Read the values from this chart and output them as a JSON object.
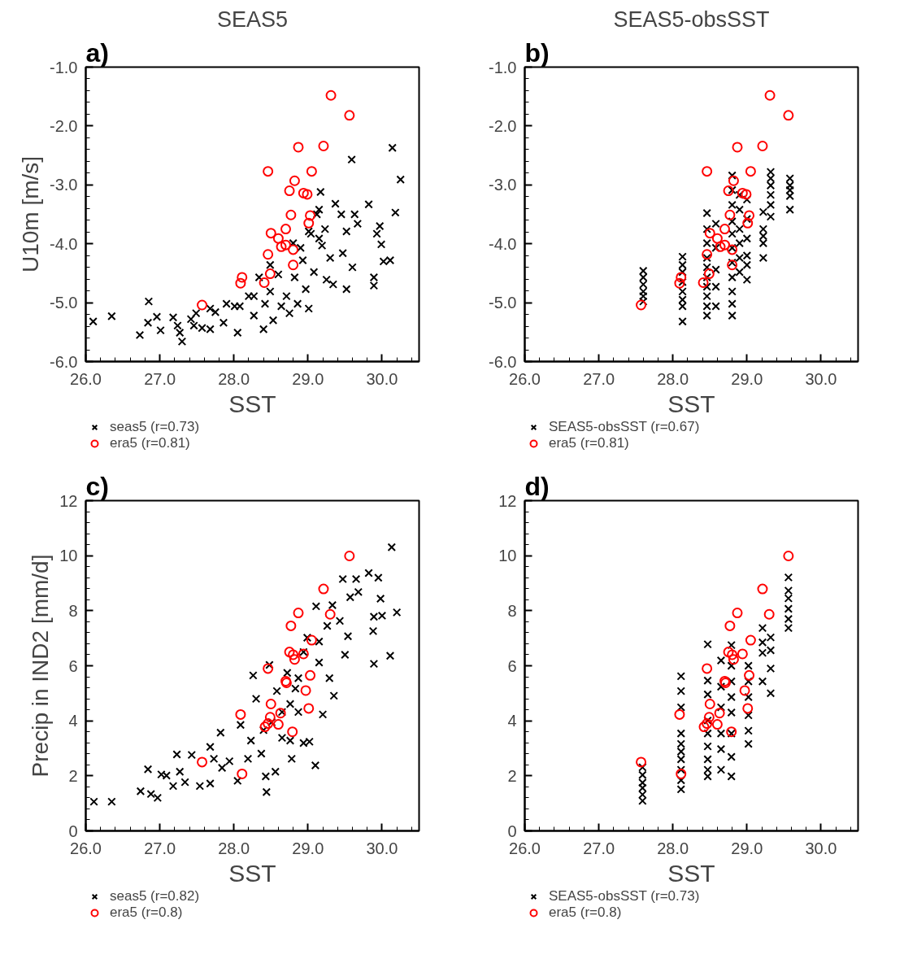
{
  "chart_data": [
    {
      "type": "scatter",
      "title": "SEAS5",
      "xlabel": "SST",
      "ylabel": "U10m [m/s]",
      "annotations": [
        "a)"
      ],
      "legend": "bottom left",
      "xlim": [
        26,
        30.5
      ],
      "ylim": [
        -6,
        -1
      ],
      "xticks": [
        {
          "value": 26,
          "label": "26.0"
        },
        {
          "value": 27,
          "label": "27.0"
        },
        {
          "value": 28,
          "label": "28.0"
        },
        {
          "value": 29,
          "label": "29.0"
        },
        {
          "value": 30,
          "label": "30.0"
        }
      ],
      "yticks": [
        {
          "value": -6,
          "label": "-6.0"
        },
        {
          "value": -5,
          "label": "-5.0"
        },
        {
          "value": -4,
          "label": "-4.0"
        },
        {
          "value": -3,
          "label": "-3.0"
        },
        {
          "value": -2,
          "label": "-2.0"
        },
        {
          "value": -1,
          "label": "-1.0"
        }
      ],
      "series": [
        {
          "name": "seas5 (r=0.73)",
          "color": "#000000",
          "marker": "cross",
          "x": [
            26.1,
            26.35,
            26.85,
            26.73,
            26.84,
            26.96,
            27.01,
            27.18,
            27.24,
            27.3,
            27.27,
            27.42,
            27.49,
            27.57,
            27.68,
            27.75,
            27.86,
            27.9,
            28.05,
            28.08,
            28.2,
            28.27,
            28.34,
            28.4,
            28.42,
            28.49,
            28.53,
            28.6,
            28.64,
            28.71,
            28.75,
            28.8,
            28.82,
            28.86,
            28.93,
            28.97,
            29.01,
            29.04,
            29.08,
            29.12,
            29.15,
            29.17,
            29.19,
            29.23,
            29.25,
            29.3,
            29.34,
            29.37,
            29.45,
            29.47,
            29.52,
            29.52,
            29.59,
            29.6,
            29.63,
            29.67,
            29.82,
            29.89,
            29.89,
            29.93,
            29.97,
            29.99,
            30.02,
            30.11,
            30.14,
            30.18,
            30.25,
            28.9,
            29.01,
            29.15,
            28.27,
            28.49,
            28.01,
            27.68,
            27.46
          ],
          "values": [
            -5.32,
            -5.23,
            -4.98,
            -5.55,
            -5.34,
            -5.24,
            -5.47,
            -5.25,
            -5.39,
            -5.66,
            -5.51,
            -5.28,
            -5.18,
            -5.43,
            -5.45,
            -5.16,
            -5.34,
            -5.02,
            -5.51,
            -5.06,
            -4.89,
            -5.22,
            -4.57,
            -5.45,
            -5.02,
            -4.81,
            -5.3,
            -4.52,
            -5.06,
            -4.89,
            -5.18,
            -3.99,
            -4.57,
            -5.02,
            -4.28,
            -4.77,
            -5.1,
            -3.83,
            -4.48,
            -3.5,
            -3.42,
            -3.12,
            -4.03,
            -3.75,
            -4.61,
            -4.24,
            -4.69,
            -3.32,
            -3.5,
            -4.16,
            -3.79,
            -4.77,
            -2.57,
            -4.4,
            -3.5,
            -3.66,
            -3.33,
            -4.57,
            -4.71,
            -3.83,
            -3.7,
            -4.01,
            -4.3,
            -4.28,
            -2.37,
            -3.47,
            -2.91,
            -4.07,
            -3.79,
            -3.91,
            -4.89,
            -4.36,
            -5.06,
            -5.1,
            -5.39
          ]
        },
        {
          "name": "era5 (r=0.81)",
          "color": "#ff0000",
          "marker": "circle",
          "x": [
            29.31,
            29.56,
            28.87,
            29.21,
            28.46,
            29.05,
            28.82,
            28.75,
            28.94,
            28.99,
            28.77,
            29.03,
            29.01,
            28.7,
            28.5,
            28.6,
            28.64,
            28.7,
            28.8,
            28.46,
            28.8,
            28.49,
            28.11,
            28.09,
            28.41,
            27.57
          ],
          "values": [
            -1.48,
            -1.82,
            -2.36,
            -2.34,
            -2.77,
            -2.77,
            -2.93,
            -3.1,
            -3.14,
            -3.16,
            -3.51,
            -3.52,
            -3.65,
            -3.75,
            -3.82,
            -3.91,
            -4.05,
            -4.02,
            -4.1,
            -4.18,
            -4.36,
            -4.51,
            -4.57,
            -4.67,
            -4.66,
            -5.04
          ]
        }
      ]
    },
    {
      "type": "scatter",
      "title": "SEAS5-obsSST",
      "xlabel": "SST",
      "annotations": [
        "b)"
      ],
      "legend": "bottom left",
      "xlim": [
        26,
        30.5
      ],
      "ylim": [
        -6,
        -1
      ],
      "xticks": [
        {
          "value": 26,
          "label": "26.0"
        },
        {
          "value": 27,
          "label": "27.0"
        },
        {
          "value": 28,
          "label": "28.0"
        },
        {
          "value": 29,
          "label": "29.0"
        },
        {
          "value": 30,
          "label": "30.0"
        }
      ],
      "yticks": [
        {
          "value": -6,
          "label": "-6.0"
        },
        {
          "value": -5,
          "label": "-5.0"
        },
        {
          "value": -4,
          "label": "-4.0"
        },
        {
          "value": -3,
          "label": "-3.0"
        },
        {
          "value": -2,
          "label": "-2.0"
        },
        {
          "value": -1,
          "label": "-1.0"
        }
      ],
      "series": [
        {
          "name": "SEAS5-obsSST (r=0.67)",
          "color": "#000000",
          "marker": "cross",
          "x": [
            27.6,
            27.6,
            27.6,
            27.6,
            27.6,
            27.6,
            28.13,
            28.13,
            28.13,
            28.13,
            28.13,
            28.13,
            28.13,
            28.13,
            28.46,
            28.46,
            28.46,
            28.46,
            28.46,
            28.46,
            28.46,
            28.46,
            28.46,
            28.46,
            28.58,
            28.58,
            28.58,
            28.58,
            28.58,
            28.8,
            28.8,
            28.8,
            28.8,
            28.8,
            28.8,
            28.8,
            28.8,
            28.8,
            28.8,
            28.8,
            28.9,
            28.9,
            28.9,
            28.9,
            28.9,
            28.9,
            29.0,
            29.0,
            29.0,
            29.0,
            29.0,
            29.0,
            29.22,
            29.22,
            29.22,
            29.22,
            29.22,
            29.32,
            29.32,
            29.32,
            29.32,
            29.32,
            29.32,
            29.58,
            29.58,
            29.58,
            29.58,
            29.58
          ],
          "values": [
            -4.46,
            -4.57,
            -4.69,
            -4.81,
            -4.89,
            -4.98,
            -4.22,
            -4.36,
            -4.48,
            -4.65,
            -4.81,
            -4.95,
            -5.06,
            -5.32,
            -3.48,
            -3.75,
            -3.99,
            -4.24,
            -4.4,
            -4.57,
            -4.73,
            -4.89,
            -5.06,
            -5.22,
            -3.66,
            -4.07,
            -4.44,
            -4.73,
            -5.06,
            -2.84,
            -3.09,
            -3.34,
            -3.62,
            -3.83,
            -4.07,
            -4.32,
            -4.57,
            -4.81,
            -5.02,
            -5.22,
            -3.17,
            -3.42,
            -3.75,
            -3.99,
            -4.24,
            -4.48,
            -3.25,
            -3.58,
            -3.91,
            -4.2,
            -4.36,
            -4.61,
            -3.46,
            -3.75,
            -3.87,
            -3.99,
            -4.24,
            -2.78,
            -2.89,
            -3.01,
            -3.17,
            -3.34,
            -3.54,
            -2.89,
            -3.01,
            -3.09,
            -3.19,
            -3.42
          ]
        },
        {
          "name": "era5 (r=0.81)",
          "color": "#ff0000",
          "marker": "circle",
          "x": [
            29.31,
            29.56,
            28.87,
            29.21,
            28.46,
            29.05,
            28.82,
            28.75,
            28.94,
            28.99,
            28.77,
            29.03,
            29.01,
            28.7,
            28.5,
            28.6,
            28.64,
            28.7,
            28.8,
            28.46,
            28.8,
            28.49,
            28.11,
            28.09,
            28.41,
            27.57
          ],
          "values": [
            -1.48,
            -1.82,
            -2.36,
            -2.34,
            -2.77,
            -2.77,
            -2.93,
            -3.1,
            -3.14,
            -3.16,
            -3.51,
            -3.52,
            -3.65,
            -3.75,
            -3.82,
            -3.91,
            -4.05,
            -4.02,
            -4.1,
            -4.18,
            -4.36,
            -4.51,
            -4.57,
            -4.67,
            -4.66,
            -5.04
          ]
        }
      ]
    },
    {
      "type": "scatter",
      "xlabel": "SST",
      "ylabel": "Precip in IND2 [mm/d]",
      "annotations": [
        "c)"
      ],
      "legend": "bottom left",
      "xlim": [
        26,
        30.5
      ],
      "ylim": [
        0,
        12
      ],
      "xticks": [
        {
          "value": 26,
          "label": "26.0"
        },
        {
          "value": 27,
          "label": "27.0"
        },
        {
          "value": 28,
          "label": "28.0"
        },
        {
          "value": 29,
          "label": "29.0"
        },
        {
          "value": 30,
          "label": "30.0"
        }
      ],
      "yticks": [
        0,
        2,
        4,
        6,
        8,
        10,
        12
      ],
      "series": [
        {
          "name": "seas5 (r=0.82)",
          "color": "#000000",
          "marker": "cross",
          "x": [
            26.11,
            26.35,
            26.74,
            26.84,
            26.88,
            26.97,
            27.02,
            27.09,
            27.18,
            27.23,
            27.27,
            27.34,
            27.43,
            27.54,
            27.68,
            27.68,
            27.73,
            27.84,
            27.82,
            27.94,
            28.05,
            28.09,
            28.19,
            28.23,
            28.26,
            28.3,
            28.37,
            28.43,
            28.44,
            28.48,
            28.51,
            28.56,
            28.58,
            28.65,
            28.72,
            28.76,
            28.78,
            28.83,
            28.87,
            28.94,
            28.99,
            29.02,
            29.1,
            29.11,
            29.15,
            29.2,
            29.26,
            29.29,
            29.33,
            29.35,
            29.43,
            29.47,
            29.5,
            29.54,
            29.57,
            29.65,
            29.68,
            29.82,
            29.88,
            29.89,
            29.95,
            29.98,
            29.89,
            30.0,
            30.11,
            30.13,
            30.2,
            28.76,
            28.87,
            28.4,
            28.94,
            29.15,
            28.65
          ],
          "values": [
            1.06,
            1.06,
            1.44,
            2.24,
            1.34,
            1.2,
            2.05,
            2.01,
            1.63,
            2.78,
            2.15,
            1.77,
            2.76,
            1.63,
            1.72,
            3.05,
            2.62,
            2.29,
            3.57,
            2.53,
            1.82,
            3.85,
            2.62,
            3.28,
            5.65,
            4.8,
            2.81,
            1.98,
            1.41,
            6.03,
            3.95,
            2.15,
            5.08,
            4.32,
            5.74,
            3.28,
            2.62,
            5.17,
            4.32,
            3.19,
            7.02,
            3.24,
            2.38,
            8.16,
            6.12,
            4.23,
            7.45,
            5.55,
            8.2,
            4.91,
            7.63,
            9.15,
            6.4,
            7.07,
            8.49,
            9.15,
            8.68,
            9.37,
            7.26,
            6.07,
            9.2,
            8.44,
            7.78,
            7.82,
            6.36,
            10.31,
            7.94,
            4.61,
            5.55,
            3.66,
            6.5,
            6.88,
            3.38
          ]
        },
        {
          "name": "era5 (r=0.8)",
          "color": "#ff0000",
          "marker": "circle",
          "x": [
            29.56,
            29.21,
            28.87,
            29.3,
            28.77,
            29.05,
            28.75,
            28.8,
            28.82,
            28.94,
            28.46,
            29.03,
            28.7,
            28.71,
            28.97,
            28.5,
            29.01,
            28.09,
            28.63,
            28.49,
            28.46,
            28.42,
            28.6,
            28.79,
            27.57,
            28.11
          ],
          "values": [
            9.99,
            8.79,
            7.92,
            7.87,
            7.45,
            6.93,
            6.5,
            6.4,
            6.23,
            6.43,
            5.9,
            5.65,
            5.44,
            5.38,
            5.1,
            4.61,
            4.45,
            4.23,
            4.28,
            4.13,
            3.9,
            3.78,
            3.87,
            3.6,
            2.5,
            2.07
          ]
        }
      ]
    },
    {
      "type": "scatter",
      "xlabel": "SST",
      "annotations": [
        "d)"
      ],
      "legend": "bottom left",
      "xlim": [
        26,
        30.5
      ],
      "ylim": [
        0,
        12
      ],
      "xticks": [
        {
          "value": 26,
          "label": "26.0"
        },
        {
          "value": 27,
          "label": "27.0"
        },
        {
          "value": 28,
          "label": "28.0"
        },
        {
          "value": 29,
          "label": "29.0"
        },
        {
          "value": 30,
          "label": "30.0"
        }
      ],
      "yticks": [
        0,
        2,
        4,
        6,
        8,
        10,
        12
      ],
      "series": [
        {
          "name": "SEAS5-obsSST (r=0.73)",
          "color": "#000000",
          "marker": "cross",
          "x": [
            27.59,
            27.59,
            27.59,
            27.59,
            27.59,
            27.59,
            28.11,
            28.11,
            28.11,
            28.11,
            28.11,
            28.11,
            28.11,
            28.11,
            28.11,
            28.11,
            28.47,
            28.47,
            28.47,
            28.47,
            28.47,
            28.47,
            28.47,
            28.47,
            28.47,
            28.65,
            28.65,
            28.65,
            28.65,
            28.65,
            28.65,
            28.79,
            28.79,
            28.79,
            28.79,
            28.79,
            28.79,
            28.79,
            28.79,
            29.02,
            29.02,
            29.02,
            29.02,
            29.02,
            29.02,
            29.21,
            29.21,
            29.21,
            29.21,
            29.32,
            29.32,
            29.32,
            29.32,
            29.56,
            29.56,
            29.56,
            29.56,
            29.56,
            29.56
          ],
          "values": [
            1.09,
            1.32,
            1.56,
            1.75,
            2.03,
            2.31,
            5.62,
            5.08,
            4.49,
            3.54,
            3.16,
            2.88,
            2.6,
            2.22,
            1.84,
            1.51,
            6.78,
            5.46,
            4.96,
            4.01,
            3.54,
            3.07,
            2.6,
            2.22,
            1.98,
            6.19,
            5.24,
            4.49,
            3.54,
            2.97,
            2.22,
            6.75,
            6.0,
            5.43,
            4.86,
            4.3,
            3.54,
            2.69,
            1.98,
            6.0,
            5.43,
            4.86,
            4.2,
            3.64,
            3.16,
            7.37,
            6.85,
            6.47,
            5.43,
            7.03,
            6.56,
            5.9,
            5.0,
            9.21,
            8.73,
            8.45,
            8.07,
            7.7,
            7.37
          ]
        },
        {
          "name": "era5 (r=0.8)",
          "color": "#ff0000",
          "marker": "circle",
          "x": [
            29.56,
            29.21,
            28.87,
            29.3,
            28.77,
            29.05,
            28.75,
            28.8,
            28.82,
            28.94,
            28.46,
            29.03,
            28.7,
            28.71,
            28.97,
            28.5,
            29.01,
            28.09,
            28.63,
            28.49,
            28.46,
            28.42,
            28.6,
            28.79,
            27.57,
            28.11
          ],
          "values": [
            9.99,
            8.79,
            7.92,
            7.87,
            7.45,
            6.93,
            6.5,
            6.4,
            6.23,
            6.43,
            5.9,
            5.65,
            5.44,
            5.38,
            5.1,
            4.61,
            4.45,
            4.23,
            4.28,
            4.13,
            3.9,
            3.78,
            3.87,
            3.6,
            2.5,
            2.07
          ]
        }
      ]
    }
  ]
}
